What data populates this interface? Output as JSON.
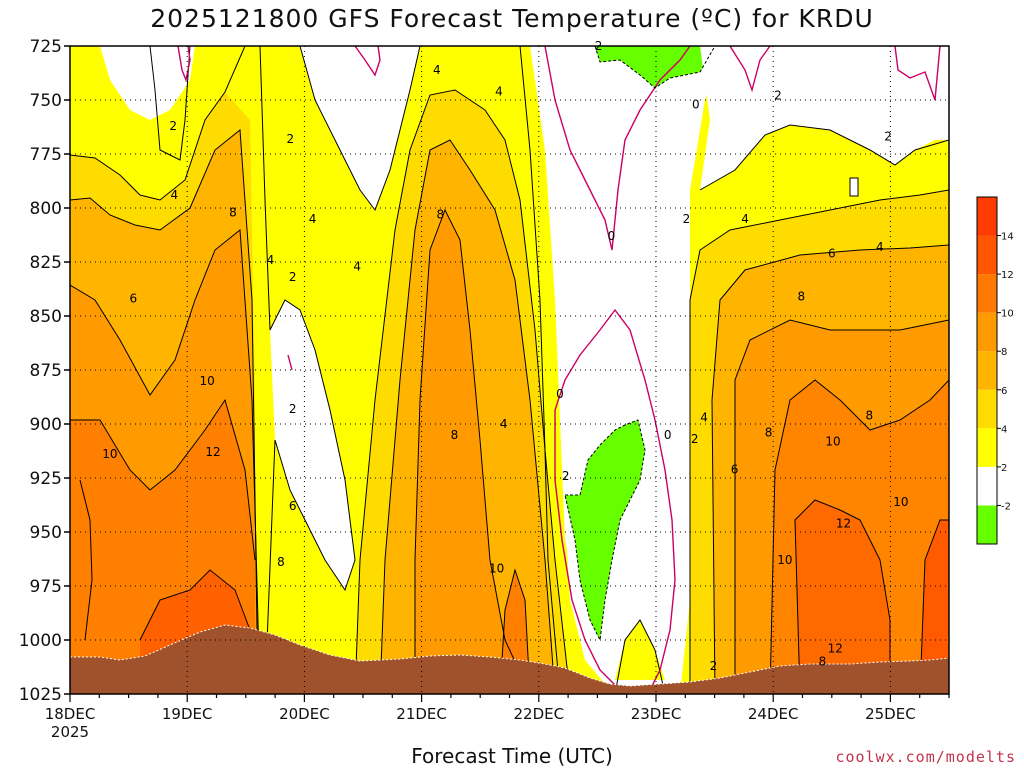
{
  "chart_data": {
    "type": "heatmap",
    "title": "2025121800 GFS Forecast Temperature (ºC) for KRDU",
    "xlabel": "Forecast Time (UTC)",
    "ylabel": "",
    "credit": "coolwx.com/modelts",
    "y_axis": {
      "ticks": [
        725,
        750,
        775,
        800,
        825,
        850,
        875,
        900,
        925,
        950,
        975,
        1000,
        1025
      ],
      "range": [
        1025,
        725
      ],
      "units": "hPa"
    },
    "x_axis": {
      "tick_labels": [
        "18DEC",
        "19DEC",
        "20DEC",
        "21DEC",
        "22DEC",
        "23DEC",
        "24DEC",
        "25DEC"
      ],
      "year_label": "2025",
      "range_days": [
        0,
        7.5
      ]
    },
    "colorbar": {
      "levels": [
        -2,
        2,
        4,
        6,
        8,
        10,
        12,
        14
      ],
      "tick_labels": [
        "-2",
        "2",
        "4",
        "6",
        "8",
        "10",
        "12",
        "14"
      ],
      "colors": [
        "#66ff00",
        "#ffffff",
        "#ffff00",
        "#ffdc00",
        "#ffb400",
        "#ff9b00",
        "#ff7800",
        "#ff5500",
        "#ff3c00"
      ]
    },
    "contour_labels": [
      {
        "text": "2",
        "day": 0.88,
        "p": 762
      },
      {
        "text": "4",
        "day": 0.89,
        "p": 794
      },
      {
        "text": "8",
        "day": 1.39,
        "p": 802
      },
      {
        "text": "6",
        "day": 0.54,
        "p": 842
      },
      {
        "text": "10",
        "day": 1.17,
        "p": 880
      },
      {
        "text": "10",
        "day": 0.34,
        "p": 914
      },
      {
        "text": "12",
        "day": 1.22,
        "p": 913
      },
      {
        "text": "2",
        "day": 1.88,
        "p": 768
      },
      {
        "text": "4",
        "day": 1.71,
        "p": 824
      },
      {
        "text": "4",
        "day": 2.07,
        "p": 805
      },
      {
        "text": "2",
        "day": 1.9,
        "p": 832
      },
      {
        "text": "4",
        "day": 2.45,
        "p": 827
      },
      {
        "text": "2",
        "day": 1.9,
        "p": 893
      },
      {
        "text": "6",
        "day": 1.9,
        "p": 938
      },
      {
        "text": "8",
        "day": 1.8,
        "p": 964
      },
      {
        "text": "4",
        "day": 3.13,
        "p": 736
      },
      {
        "text": "4",
        "day": 3.66,
        "p": 746
      },
      {
        "text": "8",
        "day": 3.16,
        "p": 803
      },
      {
        "text": "8",
        "day": 3.28,
        "p": 905
      },
      {
        "text": "4",
        "day": 3.7,
        "p": 900
      },
      {
        "text": "10",
        "day": 3.64,
        "p": 967
      },
      {
        "text": "2",
        "day": 4.51,
        "p": 725
      },
      {
        "text": "0",
        "day": 4.62,
        "p": 813
      },
      {
        "text": "0",
        "day": 5.34,
        "p": 752
      },
      {
        "text": "2",
        "day": 6.04,
        "p": 748
      },
      {
        "text": "2",
        "day": 6.98,
        "p": 767
      },
      {
        "text": "0",
        "day": 4.18,
        "p": 886
      },
      {
        "text": "2",
        "day": 4.23,
        "p": 924
      },
      {
        "text": "0",
        "day": 5.1,
        "p": 905
      },
      {
        "text": "2",
        "day": 5.33,
        "p": 907
      },
      {
        "text": "2",
        "day": 5.26,
        "p": 805
      },
      {
        "text": "4",
        "day": 5.76,
        "p": 805
      },
      {
        "text": "4",
        "day": 5.41,
        "p": 897
      },
      {
        "text": "6",
        "day": 6.5,
        "p": 821
      },
      {
        "text": "4",
        "day": 6.91,
        "p": 818
      },
      {
        "text": "8",
        "day": 6.24,
        "p": 841
      },
      {
        "text": "8",
        "day": 5.96,
        "p": 904
      },
      {
        "text": "8",
        "day": 6.82,
        "p": 896
      },
      {
        "text": "6",
        "day": 5.67,
        "p": 921
      },
      {
        "text": "10",
        "day": 6.51,
        "p": 908
      },
      {
        "text": "12",
        "day": 6.6,
        "p": 946
      },
      {
        "text": "10",
        "day": 6.1,
        "p": 963
      },
      {
        "text": "12",
        "day": 6.53,
        "p": 1004
      },
      {
        "text": "8",
        "day": 6.42,
        "p": 1010
      },
      {
        "text": "10",
        "day": 7.09,
        "p": 936
      },
      {
        "text": "2",
        "day": 5.49,
        "p": 1012
      }
    ]
  }
}
